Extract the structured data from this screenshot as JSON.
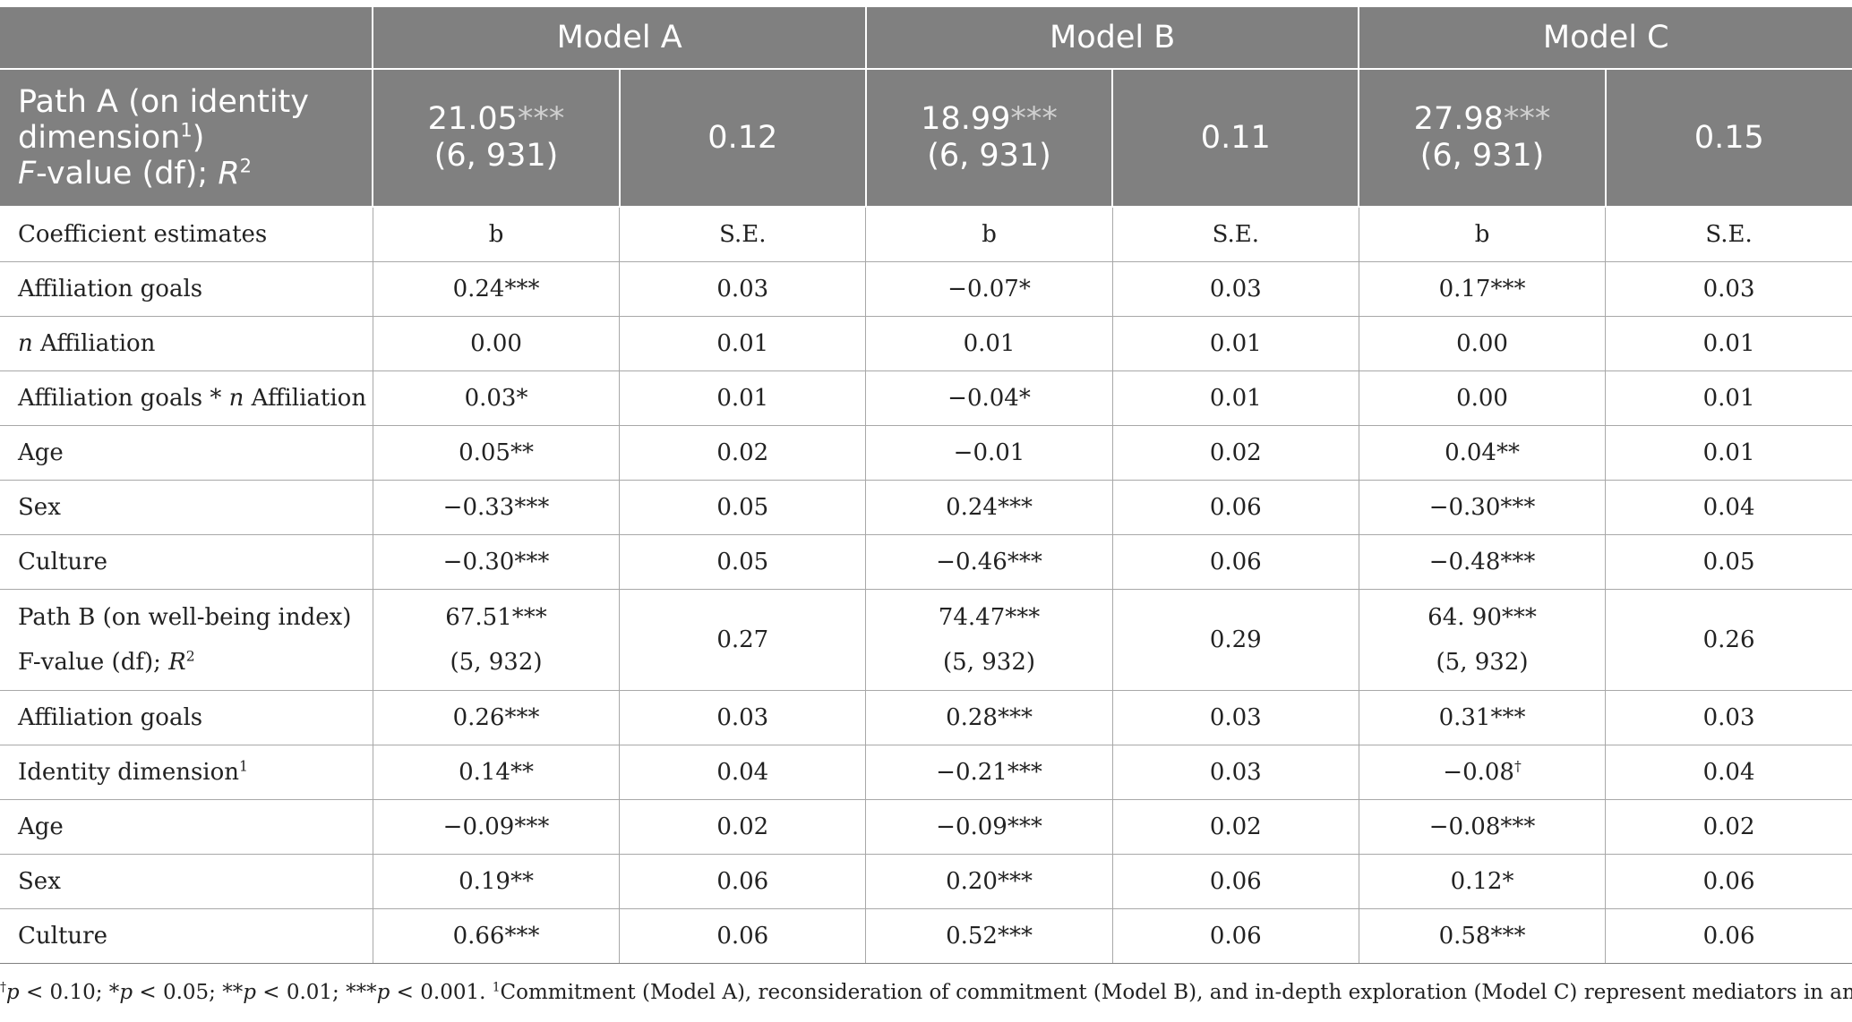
{
  "header": {
    "models": [
      "Model A",
      "Model B",
      "Model C"
    ],
    "path_a": {
      "label_line1": "Path A (on identity",
      "label_line2": "dimension",
      "label_sup": "1",
      "label_line2_end": ")",
      "label_line3_F": "F",
      "label_line3_mid": "-value (df); ",
      "label_line3_R": "R",
      "label_line3_sup": "2",
      "cells": [
        {
          "f": "21.05",
          "stars": "***",
          "df": "(6, 931)",
          "r2": "0.12"
        },
        {
          "f": "18.99",
          "stars": "***",
          "df": "(6, 931)",
          "r2": "0.11"
        },
        {
          "f": "27.98",
          "stars": "***",
          "df": "(6, 931)",
          "r2": "0.15"
        }
      ]
    }
  },
  "rows": [
    {
      "label": "Coefficient estimates",
      "values": [
        "b",
        "S.E.",
        "b",
        "S.E.",
        "b",
        "S.E."
      ]
    },
    {
      "label": "Affiliation goals",
      "values": [
        "0.24***",
        "0.03",
        "−0.07*",
        "0.03",
        "0.17***",
        "0.03"
      ]
    },
    {
      "label_italic": "n",
      "label": " Affiliation",
      "values": [
        "0.00",
        "0.01",
        "0.01",
        "0.01",
        "0.00",
        "0.01"
      ]
    },
    {
      "label_pre": "Affiliation goals * ",
      "label_italic": "n",
      "label": " Affiliation",
      "values": [
        "0.03*",
        "0.01",
        "−0.04*",
        "0.01",
        "0.00",
        "0.01"
      ]
    },
    {
      "label": "Age",
      "values": [
        "0.05**",
        "0.02",
        "−0.01",
        "0.02",
        "0.04**",
        "0.01"
      ]
    },
    {
      "label": "Sex",
      "values": [
        "−0.33***",
        "0.05",
        "0.24***",
        "0.06",
        "−0.30***",
        "0.04"
      ]
    },
    {
      "label": "Culture",
      "values": [
        "−0.30***",
        "0.05",
        "−0.46***",
        "0.06",
        "−0.48***",
        "0.05"
      ]
    }
  ],
  "path_b": {
    "label_line1": "Path B (on well-being index)",
    "label_line2": "F-value (df); ",
    "label_R": "R",
    "label_sup": "2",
    "cells": [
      {
        "f": "67.51***",
        "df": "(5, 932)",
        "r2": "0.27"
      },
      {
        "f": "74.47***",
        "df": "(5, 932)",
        "r2": "0.29"
      },
      {
        "f": "64. 90***",
        "df": "(5, 932)",
        "r2": "0.26"
      }
    ]
  },
  "rows_b": [
    {
      "label": "Affiliation goals",
      "values": [
        "0.26***",
        "0.03",
        "0.28***",
        "0.03",
        "0.31***",
        "0.03"
      ]
    },
    {
      "label": "Identity dimension",
      "label_sup": "1",
      "values": [
        "0.14**",
        "0.04",
        "−0.21***",
        "0.03",
        "−0.08",
        "0.04"
      ],
      "value_sup_index": 4,
      "value_sup": "†"
    },
    {
      "label": "Age",
      "values": [
        "−0.09***",
        "0.02",
        "−0.09***",
        "0.02",
        "−0.08***",
        "0.02"
      ]
    },
    {
      "label": "Sex",
      "values": [
        "0.19**",
        "0.06",
        "0.20***",
        "0.06",
        "0.12*",
        "0.06"
      ]
    },
    {
      "label": "Culture",
      "values": [
        "0.66***",
        "0.06",
        "0.52***",
        "0.06",
        "0.58***",
        "0.06"
      ]
    }
  ],
  "note": {
    "dagger": "†",
    "p": "p",
    "t1": " < 0.10; *",
    "t2": " < 0.05; **",
    "t3": " < 0.01; ***",
    "t4": " < 0.001. ",
    "sup1": "1",
    "t5": "Commitment (Model A), reconsideration of commitment (Model B), and in-depth exploration (Model C) represent mediators in analyses."
  }
}
